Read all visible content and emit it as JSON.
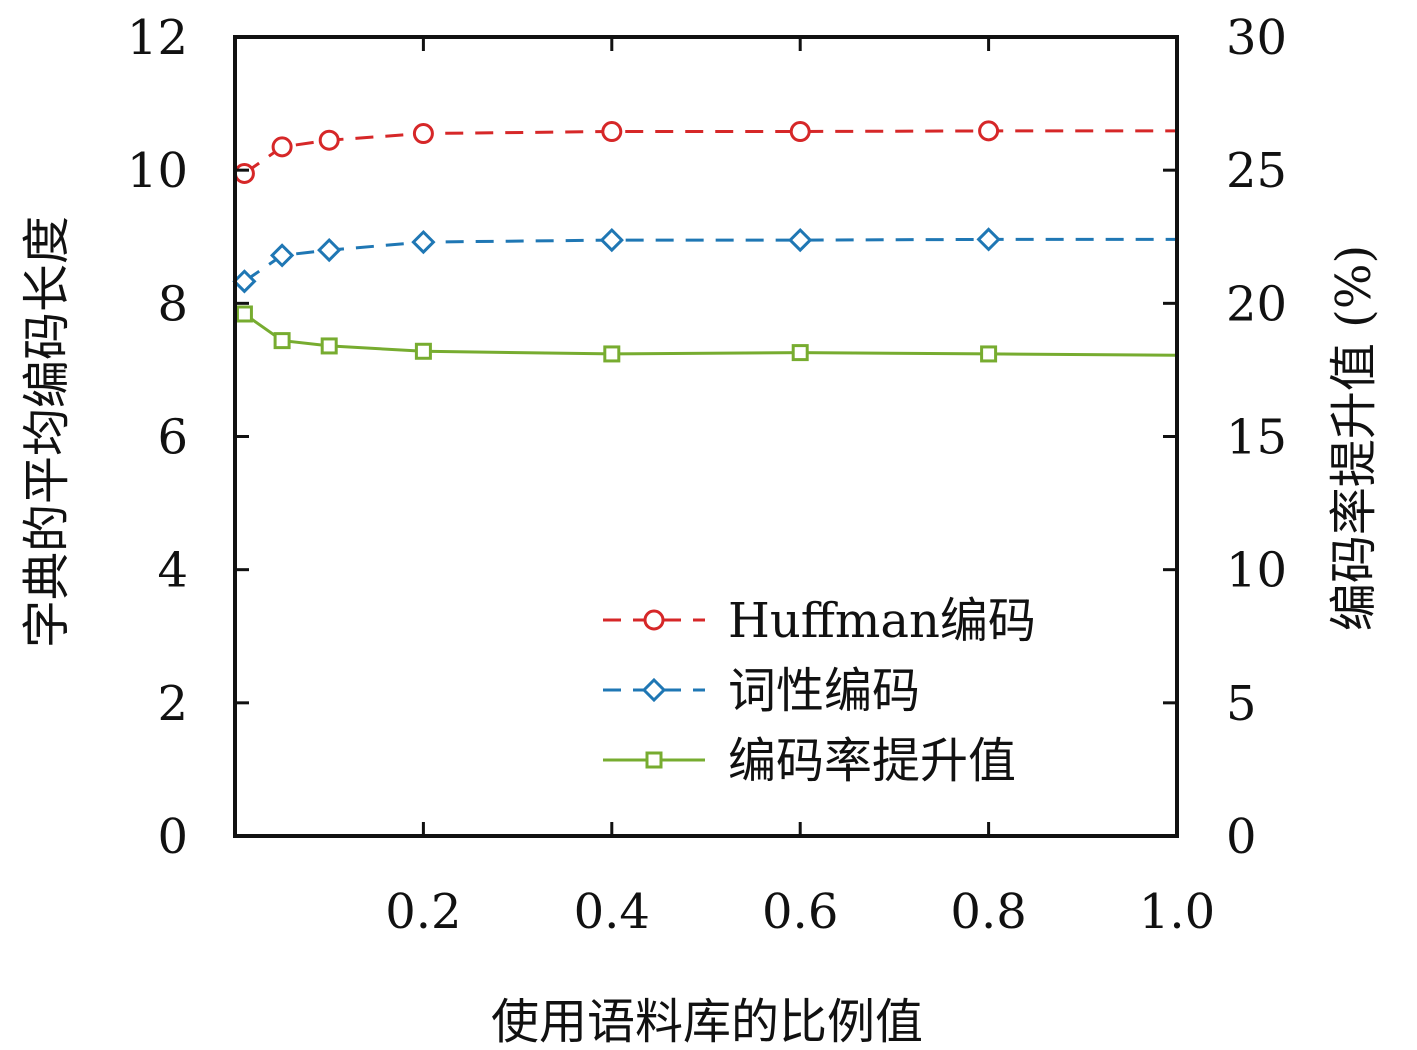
{
  "chart_data": {
    "type": "line",
    "title": "",
    "xlabel": "使用语料库的比例值",
    "ylabel_left": "字典的平均编码长度",
    "ylabel_right": "编码率提升值 (%)",
    "xlim": [
      0,
      1.0
    ],
    "ylim_left": [
      0,
      12
    ],
    "ylim_right": [
      0,
      30
    ],
    "x_ticks": [
      0.2,
      0.4,
      0.6,
      0.8,
      1.0
    ],
    "x_tick_labels": [
      "0.2",
      "0.4",
      "0.6",
      "0.8",
      "1.0"
    ],
    "y_left_ticks": [
      0,
      2,
      4,
      6,
      8,
      10,
      12
    ],
    "y_left_tick_labels": [
      "0",
      "2",
      "4",
      "6",
      "8",
      "10",
      "12"
    ],
    "y_right_ticks": [
      0,
      5,
      10,
      15,
      20,
      25,
      30
    ],
    "y_right_tick_labels": [
      "0",
      "5",
      "10",
      "15",
      "20",
      "25",
      "30"
    ],
    "grid": false,
    "legend_position": "bottom-right",
    "series": [
      {
        "name": "Huffman编码",
        "axis": "left",
        "color": "#d62728",
        "line_style": "dashed",
        "marker": "circle",
        "x": [
          0.01,
          0.05,
          0.1,
          0.2,
          0.4,
          0.6,
          0.8,
          1.0
        ],
        "y": [
          9.95,
          10.35,
          10.45,
          10.55,
          10.58,
          10.58,
          10.59,
          10.59
        ],
        "marker_x": [
          0.01,
          0.05,
          0.1,
          0.2,
          0.4,
          0.6,
          0.8
        ]
      },
      {
        "name": "词性编码",
        "axis": "left",
        "color": "#1f77b4",
        "line_style": "dashed",
        "marker": "diamond",
        "x": [
          0.01,
          0.05,
          0.1,
          0.2,
          0.4,
          0.6,
          0.8,
          1.0
        ],
        "y": [
          8.33,
          8.72,
          8.8,
          8.92,
          8.95,
          8.95,
          8.96,
          8.96
        ],
        "marker_x": [
          0.01,
          0.05,
          0.1,
          0.2,
          0.4,
          0.6,
          0.8
        ]
      },
      {
        "name": "编码率提升值",
        "axis": "right",
        "color": "#77ac30",
        "line_style": "solid",
        "marker": "square",
        "x": [
          0.01,
          0.05,
          0.1,
          0.2,
          0.4,
          0.6,
          0.8,
          1.0
        ],
        "y": [
          19.6,
          18.6,
          18.4,
          18.2,
          18.1,
          18.15,
          18.1,
          18.05
        ],
        "marker_x": [
          0.01,
          0.05,
          0.1,
          0.2,
          0.4,
          0.6,
          0.8
        ]
      }
    ]
  }
}
